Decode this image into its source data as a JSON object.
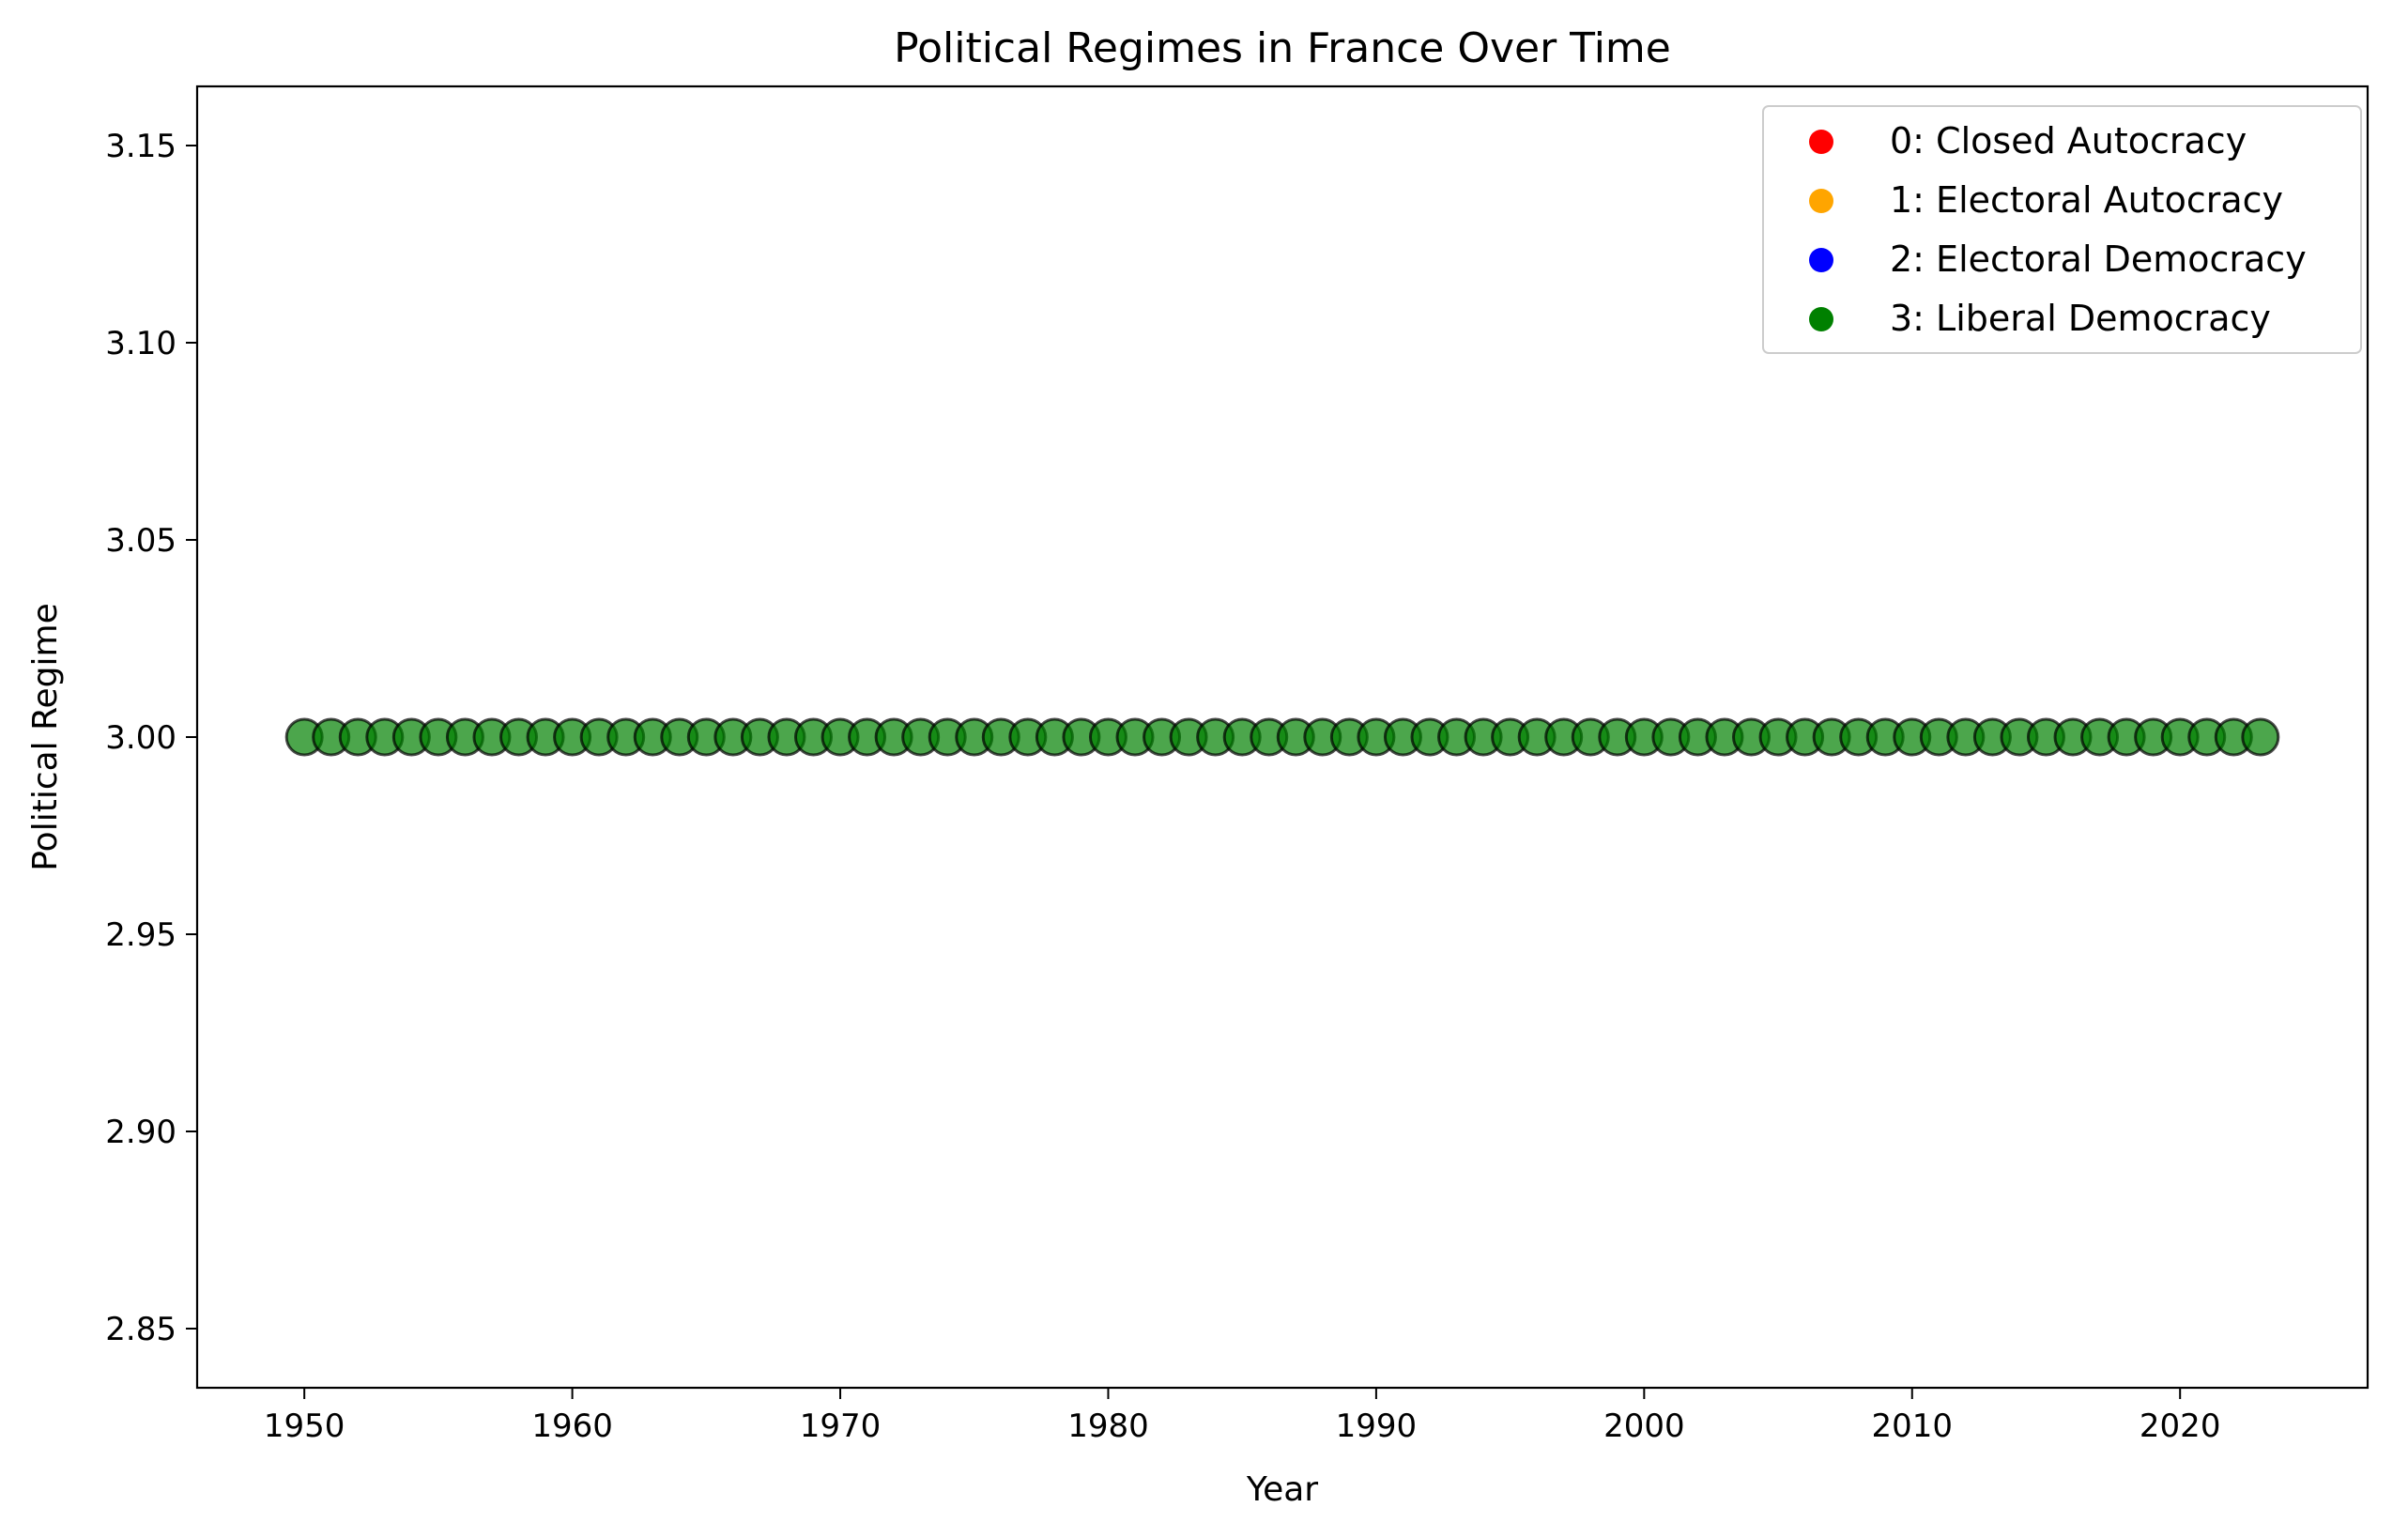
{
  "chart_data": {
    "type": "scatter",
    "title": "Political Regimes in France Over Time",
    "xlabel": "Year",
    "ylabel": "Political Regime",
    "xlim": [
      1946,
      2027
    ],
    "ylim": [
      2.835,
      3.165
    ],
    "xticks": [
      1950,
      1960,
      1970,
      1980,
      1990,
      2000,
      2010,
      2020
    ],
    "yticks": [
      2.85,
      2.9,
      2.95,
      3.0,
      3.05,
      3.1,
      3.15
    ],
    "ytick_labels": [
      "2.85",
      "2.90",
      "2.95",
      "3.00",
      "3.05",
      "3.10",
      "3.15"
    ],
    "grid": false,
    "legend_position": "top-right",
    "legend": [
      {
        "label": "0: Closed Autocracy",
        "color": "#ff0000"
      },
      {
        "label": "1: Electoral Autocracy",
        "color": "#ffa500"
      },
      {
        "label": "2: Electoral Democracy",
        "color": "#0000ff"
      },
      {
        "label": "3: Liberal Democracy",
        "color": "#008000"
      }
    ],
    "series": [
      {
        "name": "3: Liberal Democracy",
        "color": "#008000",
        "x": [
          1950,
          1951,
          1952,
          1953,
          1954,
          1955,
          1956,
          1957,
          1958,
          1959,
          1960,
          1961,
          1962,
          1963,
          1964,
          1965,
          1966,
          1967,
          1968,
          1969,
          1970,
          1971,
          1972,
          1973,
          1974,
          1975,
          1976,
          1977,
          1978,
          1979,
          1980,
          1981,
          1982,
          1983,
          1984,
          1985,
          1986,
          1987,
          1988,
          1989,
          1990,
          1991,
          1992,
          1993,
          1994,
          1995,
          1996,
          1997,
          1998,
          1999,
          2000,
          2001,
          2002,
          2003,
          2004,
          2005,
          2006,
          2007,
          2008,
          2009,
          2010,
          2011,
          2012,
          2013,
          2014,
          2015,
          2016,
          2017,
          2018,
          2019,
          2020,
          2021,
          2022,
          2023
        ],
        "y_value": 3
      }
    ]
  }
}
